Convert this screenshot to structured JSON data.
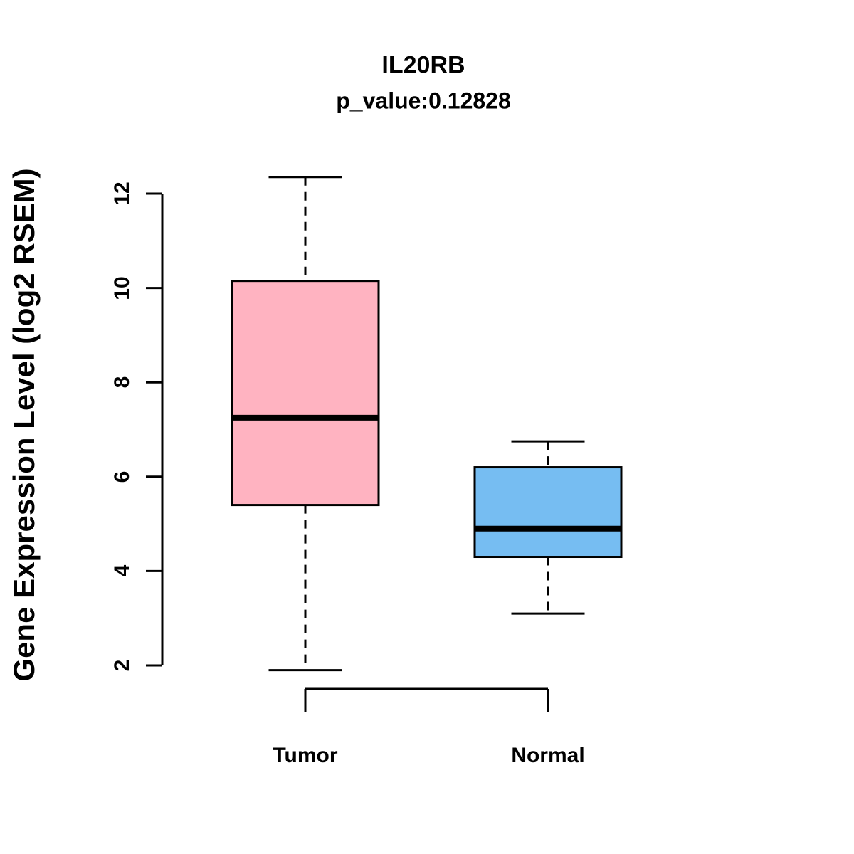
{
  "header": {
    "title": "IL20RB",
    "subtitle": "p_value:0.12828"
  },
  "chart_data": {
    "type": "boxplot",
    "title": "IL20RB",
    "subtitle": "p_value:0.12828",
    "xlabel": "",
    "ylabel": "Gene Expression Level (log2 RSEM)",
    "categories": [
      "Tumor",
      "Normal"
    ],
    "yticks": [
      2,
      4,
      6,
      8,
      10,
      12
    ],
    "ylim": [
      2,
      12
    ],
    "grid": false,
    "legend": "none",
    "series": [
      {
        "name": "Tumor",
        "color": "#FFB3C1",
        "whisker_low": 1.9,
        "q1": 5.4,
        "median": 7.25,
        "q3": 10.15,
        "whisker_high": 12.35
      },
      {
        "name": "Normal",
        "color": "#76BDF2",
        "whisker_low": 3.1,
        "q1": 4.3,
        "median": 4.9,
        "q3": 6.2,
        "whisker_high": 6.75
      }
    ]
  }
}
